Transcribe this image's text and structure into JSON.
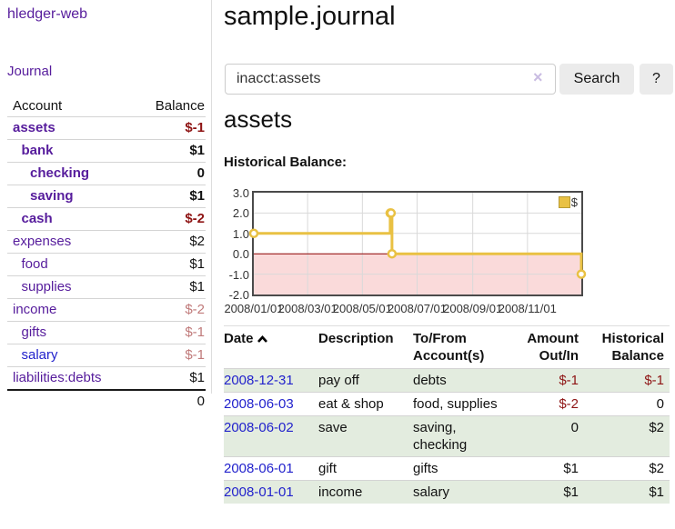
{
  "sidebar": {
    "app_title": "hledger-web",
    "nav_journal": "Journal",
    "accounts_table": {
      "headers": {
        "account": "Account",
        "balance": "Balance"
      },
      "rows": [
        {
          "account": "assets",
          "depth": 1,
          "bold": true,
          "balance": "$-1",
          "balance_style": "neg-strong"
        },
        {
          "account": "bank",
          "depth": 2,
          "bold": true,
          "balance": "$1",
          "balance_style": "pos"
        },
        {
          "account": "checking",
          "depth": 3,
          "bold": true,
          "balance": "0",
          "balance_style": "pos"
        },
        {
          "account": "saving",
          "depth": 3,
          "bold": true,
          "balance": "$1",
          "balance_style": "pos"
        },
        {
          "account": "cash",
          "depth": 2,
          "bold": true,
          "balance": "$-2",
          "balance_style": "neg-strong"
        },
        {
          "account": "expenses",
          "depth": 1,
          "bold": false,
          "balance": "$2",
          "balance_style": "pos"
        },
        {
          "account": "food",
          "depth": 2,
          "bold": false,
          "balance": "$1",
          "balance_style": "pos"
        },
        {
          "account": "supplies",
          "depth": 2,
          "bold": false,
          "balance": "$1",
          "balance_style": "pos"
        },
        {
          "account": "income",
          "depth": 1,
          "bold": false,
          "balance": "$-2",
          "balance_style": "neg-soft"
        },
        {
          "account": "gifts",
          "depth": 2,
          "bold": false,
          "balance": "$-1",
          "balance_style": "neg-soft"
        },
        {
          "account": "salary",
          "depth": 2,
          "bold": false,
          "balance": "$-1",
          "balance_style": "neg-soft",
          "variant": "blue"
        },
        {
          "account": "liabilities:debts",
          "depth": 1,
          "bold": false,
          "balance": "$1",
          "balance_style": "pos"
        }
      ],
      "total": "0"
    }
  },
  "header": {
    "title": "sample.journal"
  },
  "search": {
    "value": "inacct:assets",
    "clear_icon": "×",
    "search_label": "Search",
    "help_label": "?"
  },
  "account_page": {
    "title": "assets",
    "chart_label": "Historical Balance:"
  },
  "chart_data": {
    "type": "line",
    "step": true,
    "title": "Historical Balance:",
    "series": [
      {
        "name": "$",
        "dates": [
          "2008-01-01",
          "2008-06-01",
          "2008-06-02",
          "2008-06-03",
          "2008-12-31"
        ],
        "x_days": [
          0,
          152,
          153,
          154,
          365
        ],
        "values": [
          1,
          2,
          2,
          0,
          -1
        ]
      }
    ],
    "xlim_days": [
      0,
      365
    ],
    "ylim": [
      -2,
      3
    ],
    "y_ticks": [
      "3.0",
      "2.0",
      "1.0",
      "0.0",
      "-1.0",
      "-2.0"
    ],
    "y_gridlines": [
      2,
      1,
      0,
      -1
    ],
    "x_ticks": [
      {
        "label": "2008/01/01",
        "day": 0
      },
      {
        "label": "2008/03/01",
        "day": 60
      },
      {
        "label": "2008/05/01",
        "day": 121
      },
      {
        "label": "2008/07/01",
        "day": 182
      },
      {
        "label": "2008/09/01",
        "day": 244
      },
      {
        "label": "2008/11/01",
        "day": 305
      }
    ],
    "legend": [
      {
        "label": "$",
        "color": "#e9c143"
      }
    ],
    "legend_position": "top-right",
    "grid": true,
    "colors": {
      "line": "#e9c143",
      "negative_fill": "#fadada",
      "zero_line": "#8b0000",
      "grid": "#d9d9d9"
    }
  },
  "register": {
    "columns": [
      {
        "l1": "Date",
        "l2": ""
      },
      {
        "l1": "Description",
        "l2": ""
      },
      {
        "l1": "To/From",
        "l2": "Account(s)"
      },
      {
        "l1": "Amount",
        "l2": "Out/In"
      },
      {
        "l1": "Historical",
        "l2": "Balance"
      }
    ],
    "rows": [
      {
        "date": "2008-12-31",
        "description": "pay off",
        "accounts": "debts",
        "amount": "$-1",
        "balance": "$-1"
      },
      {
        "date": "2008-06-03",
        "description": "eat & shop",
        "accounts": "food, supplies",
        "amount": "$-2",
        "balance": "0"
      },
      {
        "date": "2008-06-02",
        "description": "save",
        "accounts": "saving,\nchecking",
        "amount": "0",
        "balance": "$2"
      },
      {
        "date": "2008-06-01",
        "description": "gift",
        "accounts": "gifts",
        "amount": "$1",
        "balance": "$2"
      },
      {
        "date": "2008-01-01",
        "description": "income",
        "accounts": "salary",
        "amount": "$1",
        "balance": "$1"
      }
    ]
  }
}
